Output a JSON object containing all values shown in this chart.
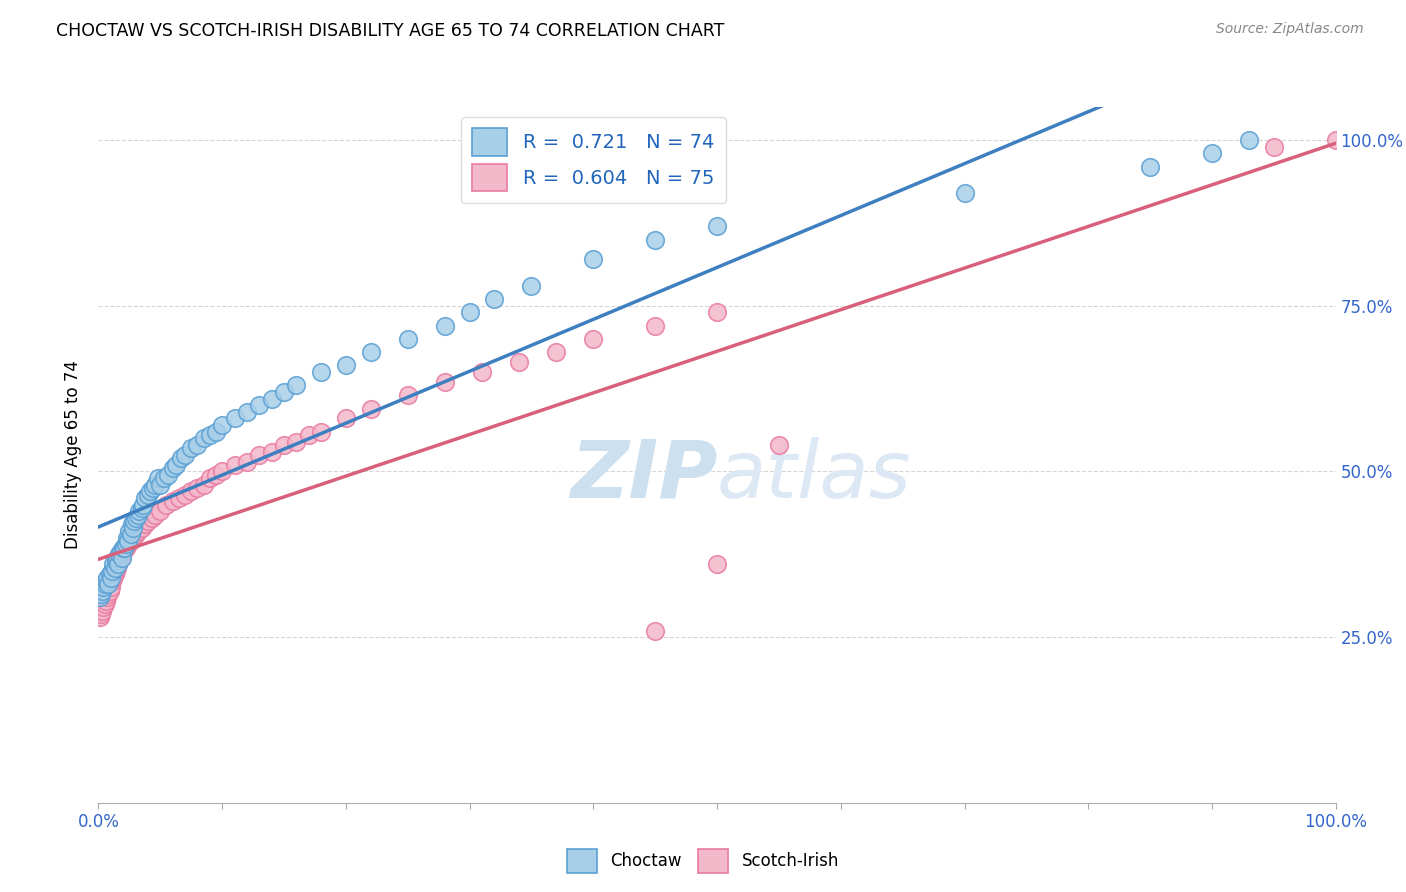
{
  "title": "CHOCTAW VS SCOTCH-IRISH DISABILITY AGE 65 TO 74 CORRELATION CHART",
  "source": "Source: ZipAtlas.com",
  "ylabel": "Disability Age 65 to 74",
  "choctaw_R": 0.721,
  "choctaw_N": 74,
  "scotch_irish_R": 0.604,
  "scotch_irish_N": 75,
  "choctaw_color": "#a8cfe8",
  "scotch_irish_color": "#f4b8cb",
  "choctaw_edge_color": "#5a9fd4",
  "scotch_irish_edge_color": "#e87ba0",
  "choctaw_line_color": "#3d7fbf",
  "scotch_irish_line_color": "#d9607a",
  "legend_text_color": "#2266bb",
  "background_color": "#ffffff",
  "grid_color": "#cccccc",
  "axis_label_color": "#3366cc",
  "watermark_zip_color": "#c8dff0",
  "watermark_atlas_color": "#b8cfe8",
  "xlim": [
    0.0,
    1.0
  ],
  "ylim": [
    0.0,
    1.05
  ],
  "xtick_vals": [
    0.0,
    1.0
  ],
  "xtick_labels": [
    "0.0%",
    "100.0%"
  ],
  "ytick_vals": [
    0.25,
    0.5,
    0.75,
    1.0
  ],
  "ytick_labels": [
    "25.0%",
    "50.0%",
    "75.0%",
    "100.0%"
  ],
  "choctaw_x": [
    0.001,
    0.002,
    0.003,
    0.004,
    0.005,
    0.006,
    0.007,
    0.008,
    0.009,
    0.01,
    0.011,
    0.012,
    0.013,
    0.014,
    0.015,
    0.016,
    0.017,
    0.018,
    0.019,
    0.02,
    0.021,
    0.022,
    0.023,
    0.024,
    0.025,
    0.026,
    0.027,
    0.028,
    0.029,
    0.03,
    0.032,
    0.033,
    0.035,
    0.036,
    0.038,
    0.04,
    0.042,
    0.044,
    0.046,
    0.048,
    0.05,
    0.053,
    0.056,
    0.06,
    0.063,
    0.067,
    0.07,
    0.075,
    0.08,
    0.085,
    0.09,
    0.095,
    0.1,
    0.11,
    0.12,
    0.13,
    0.14,
    0.15,
    0.16,
    0.18,
    0.2,
    0.22,
    0.25,
    0.28,
    0.3,
    0.32,
    0.35,
    0.4,
    0.45,
    0.5,
    0.7,
    0.85,
    0.9,
    0.93
  ],
  "choctaw_y": [
    0.31,
    0.315,
    0.32,
    0.325,
    0.33,
    0.335,
    0.34,
    0.33,
    0.345,
    0.34,
    0.35,
    0.36,
    0.355,
    0.365,
    0.37,
    0.36,
    0.375,
    0.38,
    0.37,
    0.385,
    0.385,
    0.39,
    0.4,
    0.395,
    0.41,
    0.405,
    0.42,
    0.415,
    0.425,
    0.43,
    0.435,
    0.44,
    0.445,
    0.45,
    0.46,
    0.465,
    0.47,
    0.475,
    0.48,
    0.49,
    0.48,
    0.49,
    0.495,
    0.505,
    0.51,
    0.52,
    0.525,
    0.535,
    0.54,
    0.55,
    0.555,
    0.56,
    0.57,
    0.58,
    0.59,
    0.6,
    0.61,
    0.62,
    0.63,
    0.65,
    0.66,
    0.68,
    0.7,
    0.72,
    0.74,
    0.76,
    0.78,
    0.82,
    0.85,
    0.87,
    0.92,
    0.96,
    0.98,
    1.0
  ],
  "scotch_irish_x": [
    0.001,
    0.001,
    0.001,
    0.002,
    0.002,
    0.003,
    0.003,
    0.004,
    0.004,
    0.005,
    0.005,
    0.006,
    0.006,
    0.007,
    0.007,
    0.008,
    0.008,
    0.009,
    0.009,
    0.01,
    0.011,
    0.012,
    0.013,
    0.014,
    0.015,
    0.016,
    0.017,
    0.018,
    0.019,
    0.02,
    0.022,
    0.024,
    0.026,
    0.028,
    0.03,
    0.032,
    0.035,
    0.038,
    0.04,
    0.043,
    0.046,
    0.05,
    0.055,
    0.06,
    0.065,
    0.07,
    0.075,
    0.08,
    0.085,
    0.09,
    0.095,
    0.1,
    0.11,
    0.12,
    0.13,
    0.14,
    0.15,
    0.16,
    0.17,
    0.18,
    0.2,
    0.22,
    0.25,
    0.28,
    0.31,
    0.34,
    0.37,
    0.4,
    0.45,
    0.5,
    0.55,
    0.5,
    0.45,
    0.95,
    1.0
  ],
  "scotch_irish_y": [
    0.28,
    0.295,
    0.31,
    0.285,
    0.3,
    0.29,
    0.305,
    0.295,
    0.31,
    0.3,
    0.315,
    0.305,
    0.32,
    0.31,
    0.325,
    0.315,
    0.33,
    0.32,
    0.335,
    0.325,
    0.335,
    0.34,
    0.345,
    0.35,
    0.355,
    0.36,
    0.365,
    0.37,
    0.375,
    0.38,
    0.385,
    0.39,
    0.395,
    0.4,
    0.405,
    0.41,
    0.415,
    0.42,
    0.425,
    0.43,
    0.435,
    0.44,
    0.45,
    0.455,
    0.46,
    0.465,
    0.47,
    0.475,
    0.48,
    0.49,
    0.495,
    0.5,
    0.51,
    0.515,
    0.525,
    0.53,
    0.54,
    0.545,
    0.555,
    0.56,
    0.58,
    0.595,
    0.615,
    0.635,
    0.65,
    0.665,
    0.68,
    0.7,
    0.72,
    0.74,
    0.54,
    0.36,
    0.26,
    0.99,
    1.0
  ]
}
